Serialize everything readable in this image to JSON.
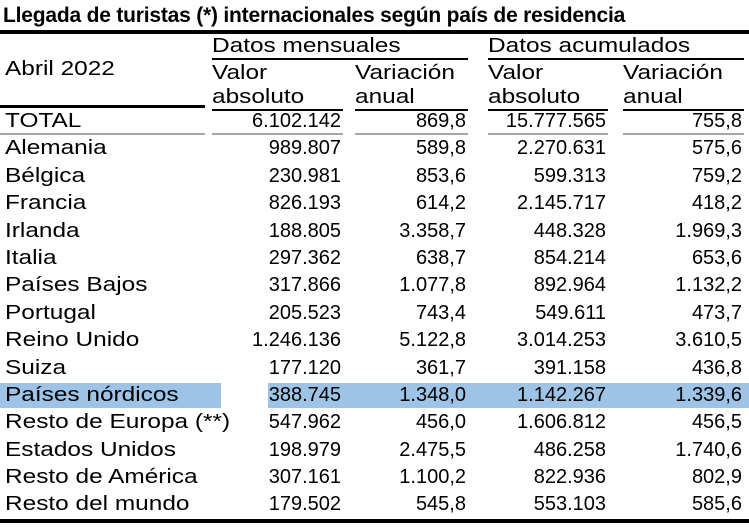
{
  "title": "Llegada de turistas (*) internacionales según país de residencia",
  "table": {
    "period": "Abril 2022",
    "column_groups": [
      {
        "label": "Datos mensuales",
        "columns": [
          {
            "line1": "Valor",
            "line2": "absoluto"
          },
          {
            "line1": "Variación",
            "line2": "anual"
          }
        ]
      },
      {
        "label": "Datos acumulados",
        "columns": [
          {
            "line1": "Valor",
            "line2": "absoluto"
          },
          {
            "line1": "Variación",
            "line2": "anual"
          }
        ]
      }
    ],
    "rows": [
      {
        "label": "TOTAL",
        "monthly_value": "6.102.142",
        "monthly_variation": "869,8",
        "accumulated_value": "15.777.565",
        "accumulated_variation": "755,8",
        "is_total": true,
        "highlighted": false
      },
      {
        "label": "Alemania",
        "monthly_value": "989.807",
        "monthly_variation": "589,8",
        "accumulated_value": "2.270.631",
        "accumulated_variation": "575,6",
        "is_total": false,
        "highlighted": false
      },
      {
        "label": "Bélgica",
        "monthly_value": "230.981",
        "monthly_variation": "853,6",
        "accumulated_value": "599.313",
        "accumulated_variation": "759,2",
        "is_total": false,
        "highlighted": false
      },
      {
        "label": "Francia",
        "monthly_value": "826.193",
        "monthly_variation": "614,2",
        "accumulated_value": "2.145.717",
        "accumulated_variation": "418,2",
        "is_total": false,
        "highlighted": false
      },
      {
        "label": "Irlanda",
        "monthly_value": "188.805",
        "monthly_variation": "3.358,7",
        "accumulated_value": "448.328",
        "accumulated_variation": "1.969,3",
        "is_total": false,
        "highlighted": false
      },
      {
        "label": "Italia",
        "monthly_value": "297.362",
        "monthly_variation": "638,7",
        "accumulated_value": "854.214",
        "accumulated_variation": "653,6",
        "is_total": false,
        "highlighted": false
      },
      {
        "label": "Países Bajos",
        "monthly_value": "317.866",
        "monthly_variation": "1.077,8",
        "accumulated_value": "892.964",
        "accumulated_variation": "1.132,2",
        "is_total": false,
        "highlighted": false
      },
      {
        "label": "Portugal",
        "monthly_value": "205.523",
        "monthly_variation": "743,4",
        "accumulated_value": "549.611",
        "accumulated_variation": "473,7",
        "is_total": false,
        "highlighted": false
      },
      {
        "label": "Reino Unido",
        "monthly_value": "1.246.136",
        "monthly_variation": "5.122,8",
        "accumulated_value": "3.014.253",
        "accumulated_variation": "3.610,5",
        "is_total": false,
        "highlighted": false
      },
      {
        "label": "Suiza",
        "monthly_value": "177.120",
        "monthly_variation": "361,7",
        "accumulated_value": "391.158",
        "accumulated_variation": "436,8",
        "is_total": false,
        "highlighted": false
      },
      {
        "label": "Países nórdicos",
        "monthly_value": "388.745",
        "monthly_variation": "1.348,0",
        "accumulated_value": "1.142.267",
        "accumulated_variation": "1.339,6",
        "is_total": false,
        "highlighted": true
      },
      {
        "label": "Resto de Europa (**)",
        "monthly_value": "547.962",
        "monthly_variation": "456,0",
        "accumulated_value": "1.606.812",
        "accumulated_variation": "456,5",
        "is_total": false,
        "highlighted": false
      },
      {
        "label": "Estados Unidos",
        "monthly_value": "198.979",
        "monthly_variation": "2.475,5",
        "accumulated_value": "486.258",
        "accumulated_variation": "1.740,6",
        "is_total": false,
        "highlighted": false
      },
      {
        "label": "Resto de América",
        "monthly_value": "307.161",
        "monthly_variation": "1.100,2",
        "accumulated_value": "822.936",
        "accumulated_variation": "802,9",
        "is_total": false,
        "highlighted": false
      },
      {
        "label": "Resto del mundo",
        "monthly_value": "179.502",
        "monthly_variation": "545,8",
        "accumulated_value": "553.103",
        "accumulated_variation": "585,6",
        "is_total": false,
        "highlighted": false
      }
    ]
  },
  "colors": {
    "highlight": "#9DC3E6",
    "rule": "#000000",
    "total_divider": "#A6A6A6"
  }
}
